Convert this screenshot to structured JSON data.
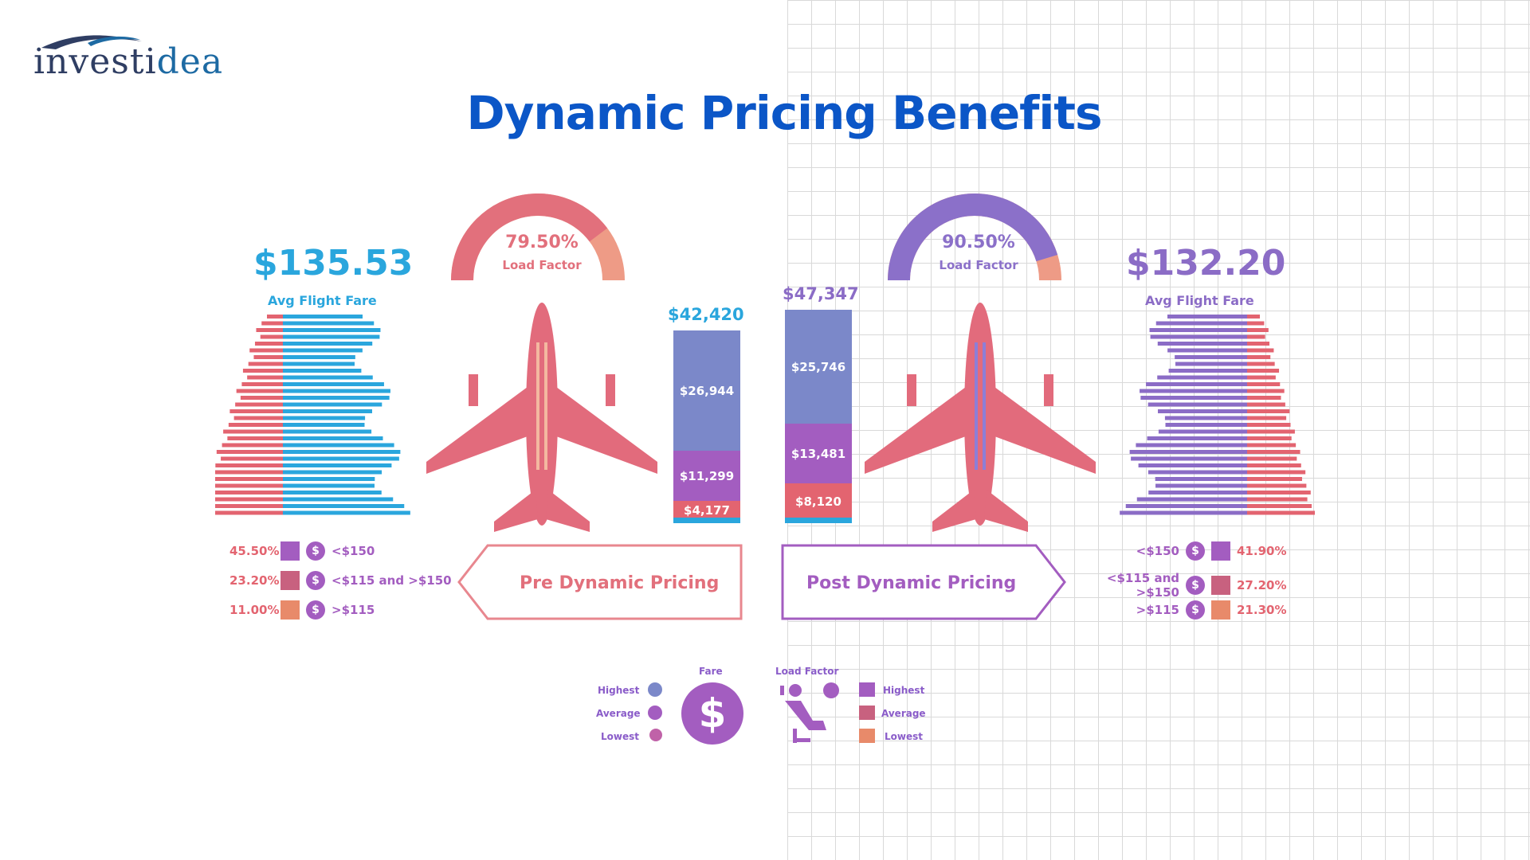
{
  "logo": {
    "text_main": "investi",
    "text_accent": "dea"
  },
  "title": "Dynamic Pricing Benefits",
  "colors": {
    "title": "#0b56c7",
    "pre_accent": "#2aa6dd",
    "post_accent": "#8b6cc6",
    "plane": "#e26b7c",
    "seg_top": "#7b88c9",
    "seg_mid": "#a35dc0",
    "seg_bot": "#e36470",
    "gauge_pre": "#e2707c",
    "gauge_post": "#8b70c9",
    "gauge_tail": "#ee9b86"
  },
  "pre": {
    "avg_fare": "$135.53",
    "avg_fare_label": "Avg Flight Fare",
    "load_factor_value": "79.50%",
    "load_factor_label": "Load Factor",
    "load_factor_fraction": 0.795,
    "stack_total": "$42,420",
    "segments": [
      {
        "label": "$26,944",
        "value": 26944
      },
      {
        "label": "$11,299",
        "value": 11299
      },
      {
        "label": "$4,177",
        "value": 4177
      }
    ],
    "arrow_label": "Pre Dynamic Pricing",
    "legend": [
      {
        "pct": "45.50%",
        "range": "<$150"
      },
      {
        "pct": "23.20%",
        "range": "<$115 and >$150"
      },
      {
        "pct": "11.00%",
        "range": ">$115"
      }
    ]
  },
  "post": {
    "avg_fare": "$132.20",
    "avg_fare_label": "Avg Flight Fare",
    "load_factor_value": "90.50%",
    "load_factor_label": "Load Factor",
    "load_factor_fraction": 0.905,
    "stack_total": "$47,347",
    "segments": [
      {
        "label": "$25,746",
        "value": 25746
      },
      {
        "label": "$13,481",
        "value": 13481
      },
      {
        "label": "$8,120",
        "value": 8120
      }
    ],
    "arrow_label": "Post Dynamic Pricing",
    "legend": [
      {
        "pct": "41.90%",
        "range": "<$150"
      },
      {
        "pct": "27.20%",
        "range": "<$115 and >$150"
      },
      {
        "pct": "21.30%",
        "range": ">$115"
      }
    ]
  },
  "key": {
    "fare_heading": "Fare",
    "load_heading": "Load Factor",
    "fare_items": [
      "Highest",
      "Average",
      "Lowest"
    ],
    "load_items": [
      "Highest",
      "Average",
      "Lowest"
    ],
    "dollar_symbol": "$"
  },
  "chart_data": [
    {
      "type": "bar",
      "title": "Pre Dynamic Pricing",
      "categories": [
        "Pre Dynamic Pricing"
      ],
      "series": [
        {
          "name": "",
          "values": [
            26944
          ]
        },
        {
          "name": "",
          "values": [
            11299
          ]
        },
        {
          "name": "",
          "values": [
            4177
          ]
        }
      ],
      "total": 42420
    },
    {
      "type": "bar",
      "title": "Post Dynamic Pricing",
      "categories": [
        "Post Dynamic Pricing"
      ],
      "series": [
        {
          "name": "",
          "values": [
            25746
          ]
        },
        {
          "name": "",
          "values": [
            13481
          ]
        },
        {
          "name": "",
          "values": [
            8120
          ]
        }
      ],
      "total": 47347
    }
  ]
}
